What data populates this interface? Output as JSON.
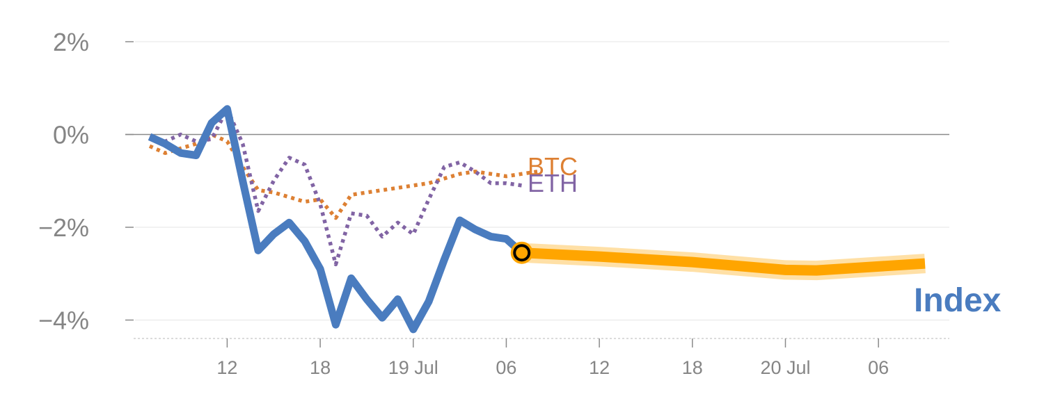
{
  "chart_data": {
    "type": "line",
    "y_unit": "%",
    "ylim": [
      -4.4,
      2.0
    ],
    "y_ticks": [
      {
        "value": 2,
        "label": "2%"
      },
      {
        "value": 0,
        "label": "0%"
      },
      {
        "value": -2,
        "label": "−2%"
      },
      {
        "value": -4,
        "label": "−4%"
      }
    ],
    "x_start": "2023-07-18T07:00",
    "x_end": "2023-07-20T09:00",
    "x_ticks": [
      {
        "value": "2023-07-18T12:00",
        "label": "12"
      },
      {
        "value": "2023-07-18T18:00",
        "label": "18"
      },
      {
        "value": "2023-07-19T00:00",
        "label": "19 Jul"
      },
      {
        "value": "2023-07-19T06:00",
        "label": "06"
      },
      {
        "value": "2023-07-19T12:00",
        "label": "12"
      },
      {
        "value": "2023-07-19T18:00",
        "label": "18"
      },
      {
        "value": "2023-07-20T00:00",
        "label": "20 Jul"
      },
      {
        "value": "2023-07-20T06:00",
        "label": "06"
      }
    ],
    "grid": true,
    "zero_line": true,
    "series": [
      {
        "name": "Index",
        "color": "#4a7cbf",
        "style": "solid",
        "points": [
          [
            "2023-07-18T07:00",
            -0.05
          ],
          [
            "2023-07-18T08:00",
            -0.2
          ],
          [
            "2023-07-18T09:00",
            -0.4
          ],
          [
            "2023-07-18T10:00",
            -0.45
          ],
          [
            "2023-07-18T11:00",
            0.25
          ],
          [
            "2023-07-18T12:00",
            0.55
          ],
          [
            "2023-07-18T13:00",
            -1.0
          ],
          [
            "2023-07-18T14:00",
            -2.5
          ],
          [
            "2023-07-18T15:00",
            -2.15
          ],
          [
            "2023-07-18T16:00",
            -1.9
          ],
          [
            "2023-07-18T17:00",
            -2.3
          ],
          [
            "2023-07-18T18:00",
            -2.9
          ],
          [
            "2023-07-18T19:00",
            -4.1
          ],
          [
            "2023-07-18T20:00",
            -3.1
          ],
          [
            "2023-07-18T21:00",
            -3.55
          ],
          [
            "2023-07-18T22:00",
            -3.95
          ],
          [
            "2023-07-18T23:00",
            -3.55
          ],
          [
            "2023-07-19T00:00",
            -4.2
          ],
          [
            "2023-07-19T01:00",
            -3.6
          ],
          [
            "2023-07-19T02:00",
            -2.7
          ],
          [
            "2023-07-19T03:00",
            -1.85
          ],
          [
            "2023-07-19T04:00",
            -2.05
          ],
          [
            "2023-07-19T05:00",
            -2.2
          ],
          [
            "2023-07-19T06:00",
            -2.25
          ],
          [
            "2023-07-19T07:00",
            -2.55
          ]
        ]
      },
      {
        "name": "Index forecast",
        "color": "#ffa500",
        "style": "band",
        "points": [
          [
            "2023-07-19T07:00",
            -2.55
          ],
          [
            "2023-07-19T12:00",
            -2.63
          ],
          [
            "2023-07-19T18:00",
            -2.75
          ],
          [
            "2023-07-20T00:00",
            -2.92
          ],
          [
            "2023-07-20T02:00",
            -2.93
          ],
          [
            "2023-07-20T09:00",
            -2.78
          ]
        ]
      },
      {
        "name": "BTC",
        "color": "#dd8033",
        "style": "dotted",
        "points": [
          [
            "2023-07-18T07:00",
            -0.25
          ],
          [
            "2023-07-18T08:00",
            -0.4
          ],
          [
            "2023-07-18T09:00",
            -0.3
          ],
          [
            "2023-07-18T10:00",
            -0.2
          ],
          [
            "2023-07-18T11:00",
            0.0
          ],
          [
            "2023-07-18T12:00",
            -0.15
          ],
          [
            "2023-07-18T13:00",
            -0.7
          ],
          [
            "2023-07-18T14:00",
            -1.2
          ],
          [
            "2023-07-18T15:00",
            -1.25
          ],
          [
            "2023-07-18T16:00",
            -1.35
          ],
          [
            "2023-07-18T17:00",
            -1.45
          ],
          [
            "2023-07-18T18:00",
            -1.4
          ],
          [
            "2023-07-18T19:00",
            -1.8
          ],
          [
            "2023-07-18T20:00",
            -1.3
          ],
          [
            "2023-07-18T21:00",
            -1.25
          ],
          [
            "2023-07-18T22:00",
            -1.2
          ],
          [
            "2023-07-18T23:00",
            -1.15
          ],
          [
            "2023-07-19T00:00",
            -1.1
          ],
          [
            "2023-07-19T01:00",
            -1.05
          ],
          [
            "2023-07-19T02:00",
            -0.95
          ],
          [
            "2023-07-19T03:00",
            -0.85
          ],
          [
            "2023-07-19T04:00",
            -0.8
          ],
          [
            "2023-07-19T05:00",
            -0.85
          ],
          [
            "2023-07-19T06:00",
            -0.9
          ],
          [
            "2023-07-19T07:00",
            -0.85
          ],
          [
            "2023-07-19T08:00",
            -0.8
          ]
        ]
      },
      {
        "name": "ETH",
        "color": "#8164a4",
        "style": "dotted",
        "points": [
          [
            "2023-07-18T07:00",
            -0.05
          ],
          [
            "2023-07-18T08:00",
            -0.15
          ],
          [
            "2023-07-18T09:00",
            0.0
          ],
          [
            "2023-07-18T10:00",
            -0.15
          ],
          [
            "2023-07-18T11:00",
            -0.1
          ],
          [
            "2023-07-18T12:00",
            0.55
          ],
          [
            "2023-07-18T13:00",
            -0.2
          ],
          [
            "2023-07-18T14:00",
            -1.65
          ],
          [
            "2023-07-18T15:00",
            -1.0
          ],
          [
            "2023-07-18T16:00",
            -0.5
          ],
          [
            "2023-07-18T17:00",
            -0.65
          ],
          [
            "2023-07-18T18:00",
            -1.5
          ],
          [
            "2023-07-18T19:00",
            -2.8
          ],
          [
            "2023-07-18T20:00",
            -1.7
          ],
          [
            "2023-07-18T21:00",
            -1.75
          ],
          [
            "2023-07-18T22:00",
            -2.2
          ],
          [
            "2023-07-18T23:00",
            -1.9
          ],
          [
            "2023-07-19T00:00",
            -2.15
          ],
          [
            "2023-07-19T01:00",
            -1.4
          ],
          [
            "2023-07-19T02:00",
            -0.7
          ],
          [
            "2023-07-19T03:00",
            -0.6
          ],
          [
            "2023-07-19T04:00",
            -0.8
          ],
          [
            "2023-07-19T05:00",
            -1.05
          ],
          [
            "2023-07-19T06:00",
            -1.05
          ],
          [
            "2023-07-19T07:00",
            -1.1
          ]
        ]
      }
    ],
    "marker": {
      "x": "2023-07-19T07:00",
      "y": -2.55,
      "color": "#ffa500"
    },
    "labels": {
      "btc": "BTC",
      "eth": "ETH",
      "index": "Index"
    }
  }
}
